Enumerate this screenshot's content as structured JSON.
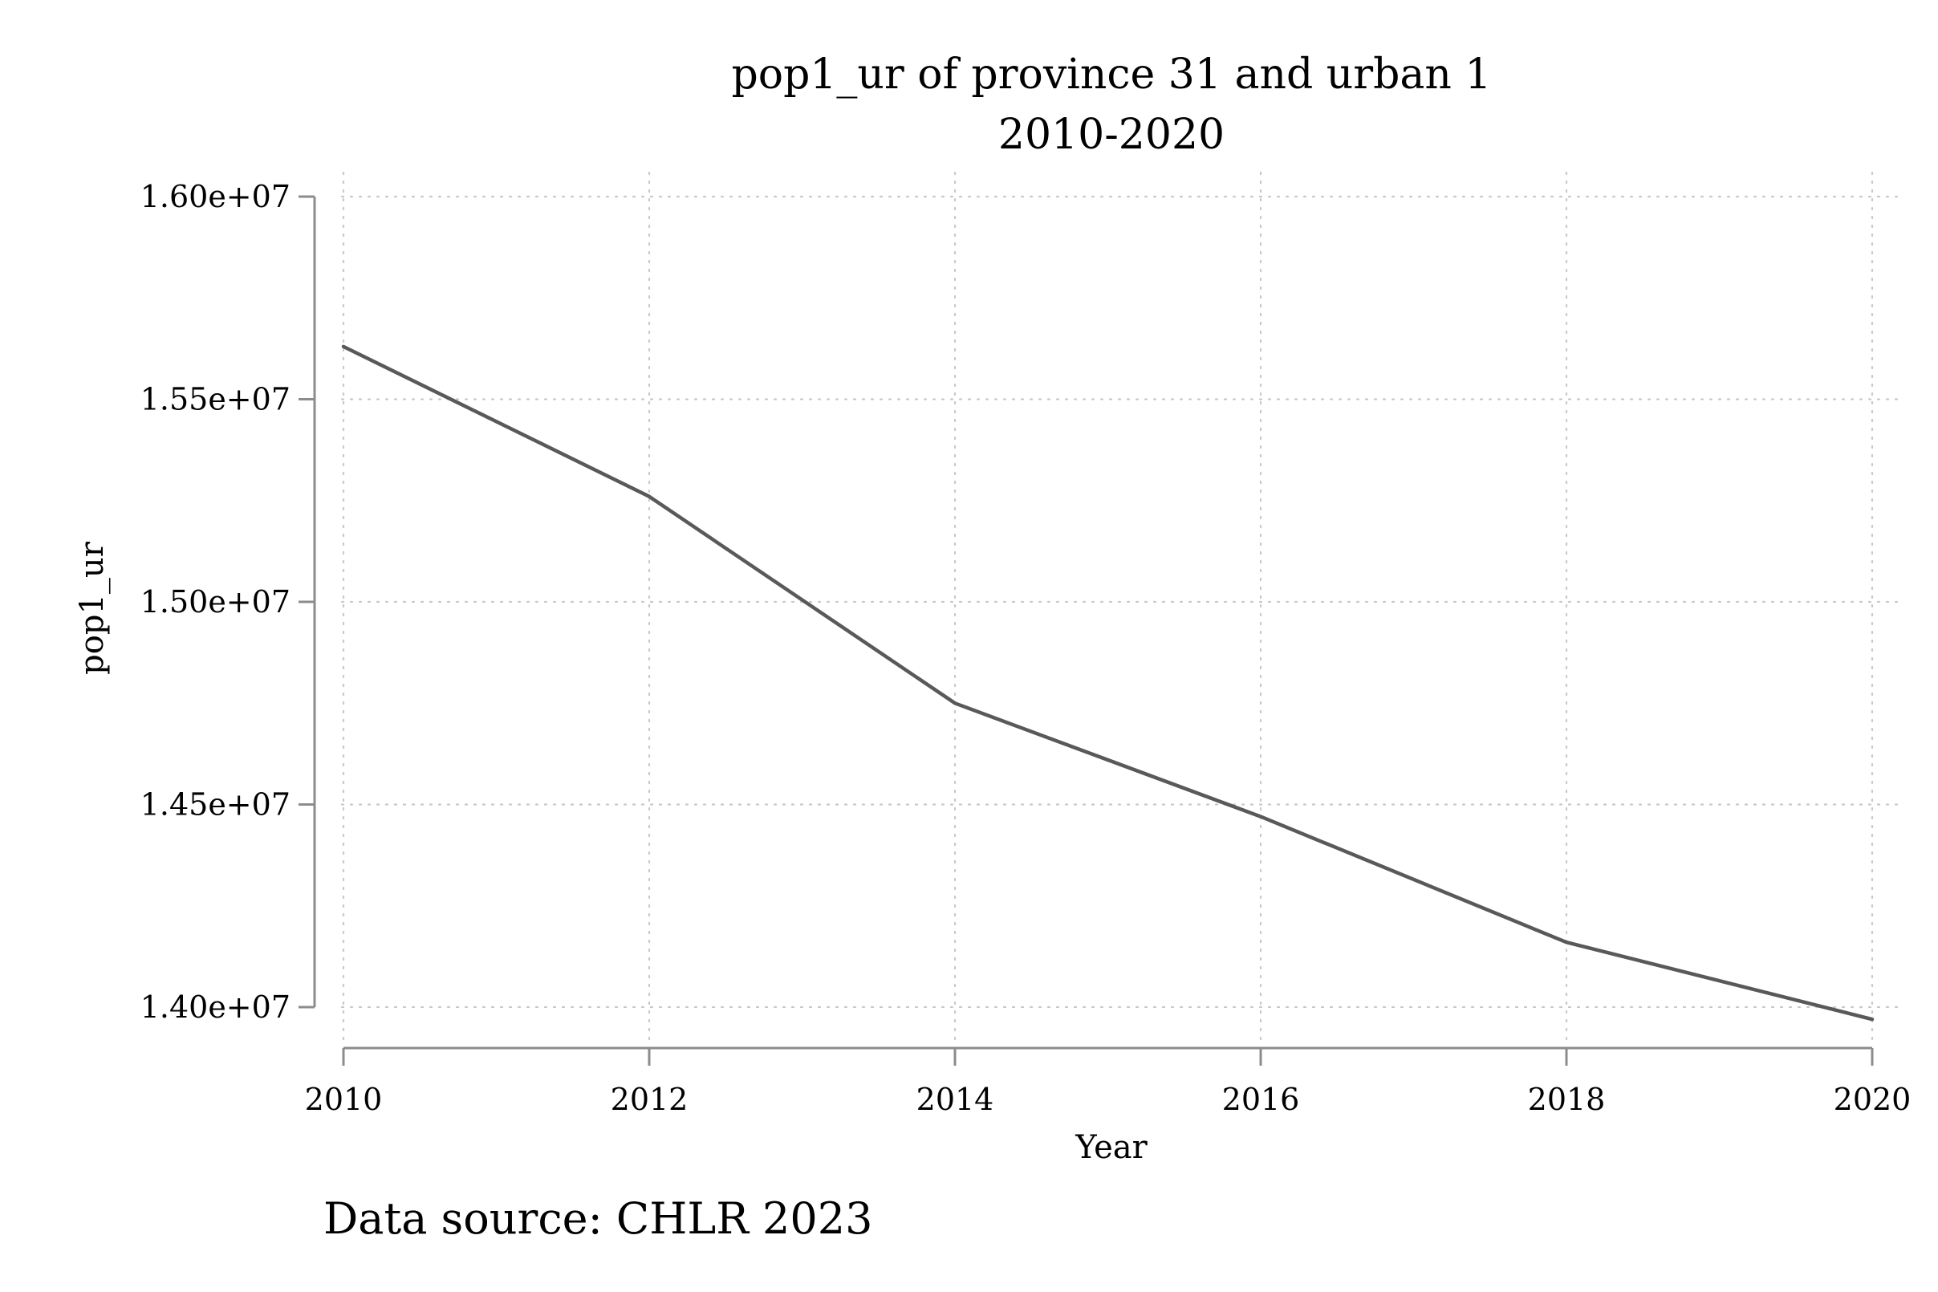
{
  "chart_data": {
    "type": "line",
    "title": "pop1_ur of province 31 and urban 1",
    "subtitle": "2010-2020",
    "xlabel": "Year",
    "ylabel": "pop1_ur",
    "note": "Data source: CHLR 2023",
    "x": [
      2010,
      2012,
      2014,
      2016,
      2018,
      2020
    ],
    "series": [
      {
        "values": [
          15630000,
          15260000,
          14750000,
          14470000,
          14160000,
          13970000
        ]
      }
    ],
    "xlim": [
      2010,
      2020
    ],
    "ylim": [
      14000000,
      16000000
    ],
    "xticks": [
      2010,
      2012,
      2014,
      2016,
      2018,
      2020
    ],
    "xtick_labels": [
      "2010",
      "2012",
      "2014",
      "2016",
      "2018",
      "2020"
    ],
    "yticks": [
      14000000,
      14500000,
      15000000,
      15500000,
      16000000
    ],
    "ytick_labels": [
      "1.40e+07",
      "1.45e+07",
      "1.50e+07",
      "1.55e+07",
      "1.60e+07"
    ],
    "grid": true,
    "legend": "none",
    "line_color": "#595959",
    "axis_color": "#8c8c8c",
    "grid_color": "#c8c8c8"
  }
}
